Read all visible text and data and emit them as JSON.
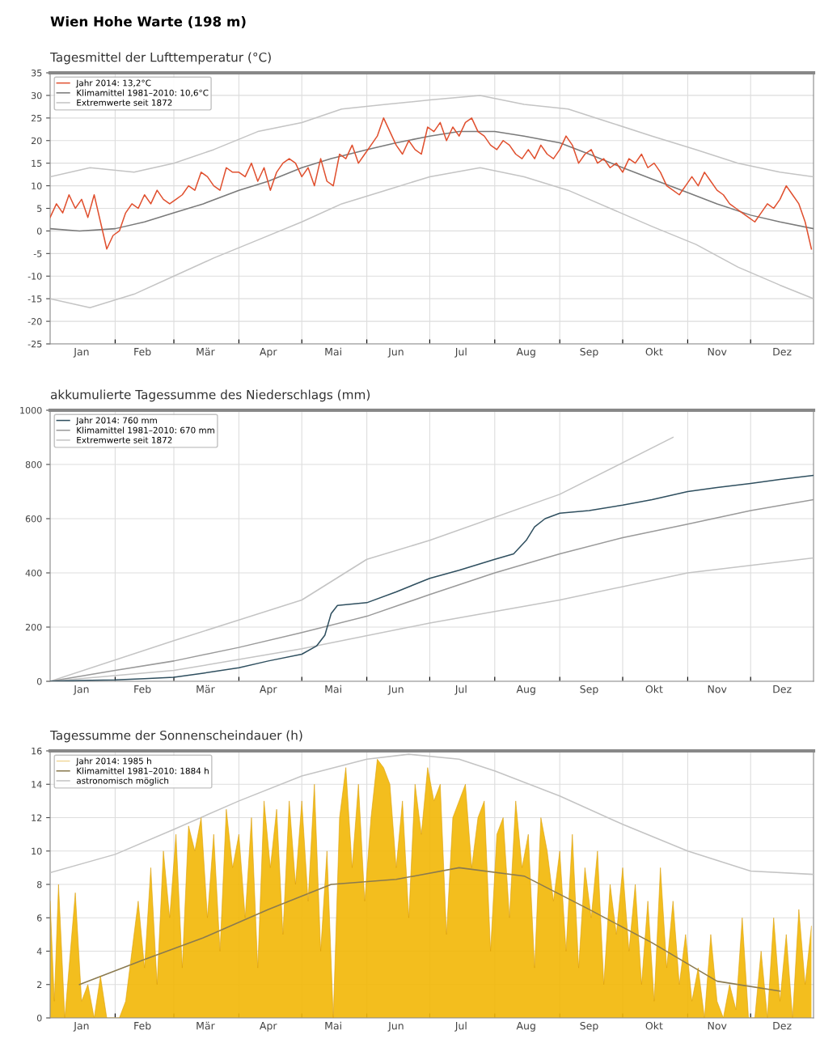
{
  "chart_data": [
    {
      "type": "line",
      "title": "Wien Hohe Warte (198 m)",
      "subtitle": "Tagesmittel der Lufttemperatur (°C)",
      "legend": "top left",
      "grid": true,
      "xlim": [
        "2014-01-01",
        "2014-12-31"
      ],
      "xticks": [
        {
          "value": "2014-02-01",
          "label": null
        },
        {
          "value": "2014-03-01",
          "label": null
        },
        {
          "value": "2014-04-01",
          "label": null
        },
        {
          "value": "2014-05-01",
          "label": null
        },
        {
          "value": "2014-06-01",
          "label": null
        },
        {
          "value": "2014-07-01",
          "label": null
        },
        {
          "value": "2014-08-01",
          "label": null
        },
        {
          "value": "2014-09-01",
          "label": null
        },
        {
          "value": "2014-10-01",
          "label": null
        },
        {
          "value": "2014-11-01",
          "label": null
        },
        {
          "value": "2014-12-01",
          "label": null
        },
        {
          "value": "2014-01-16",
          "label": "Jan"
        },
        {
          "value": "2014-02-14",
          "label": "Feb"
        },
        {
          "value": "2014-03-16",
          "label": "Mär"
        },
        {
          "value": "2014-04-15",
          "label": "Apr"
        },
        {
          "value": "2014-05-16",
          "label": "Mai"
        },
        {
          "value": "2014-06-15",
          "label": "Jun"
        },
        {
          "value": "2014-07-16",
          "label": "Jul"
        },
        {
          "value": "2014-08-16",
          "label": "Aug"
        },
        {
          "value": "2014-09-15",
          "label": "Sep"
        },
        {
          "value": "2014-10-16",
          "label": "Okt"
        },
        {
          "value": "2014-11-15",
          "label": "Nov"
        },
        {
          "value": "2014-12-16",
          "label": "Dez"
        }
      ],
      "ylim": [
        -25,
        35
      ],
      "yticks": [
        -25,
        -20,
        -15,
        -10,
        -5,
        0,
        5,
        10,
        15,
        20,
        25,
        30,
        35
      ],
      "series": [
        {
          "name": "Jahr 2014: 13,2°C",
          "color": "#e0502f",
          "x": [
            "2014-01-01",
            "2014-01-04",
            "2014-01-07",
            "2014-01-10",
            "2014-01-13",
            "2014-01-16",
            "2014-01-19",
            "2014-01-22",
            "2014-01-25",
            "2014-01-28",
            "2014-01-31",
            "2014-02-03",
            "2014-02-06",
            "2014-02-09",
            "2014-02-12",
            "2014-02-15",
            "2014-02-18",
            "2014-02-21",
            "2014-02-24",
            "2014-02-27",
            "2014-03-02",
            "2014-03-05",
            "2014-03-08",
            "2014-03-11",
            "2014-03-14",
            "2014-03-17",
            "2014-03-20",
            "2014-03-23",
            "2014-03-26",
            "2014-03-29",
            "2014-04-01",
            "2014-04-04",
            "2014-04-07",
            "2014-04-10",
            "2014-04-13",
            "2014-04-16",
            "2014-04-19",
            "2014-04-22",
            "2014-04-25",
            "2014-04-28",
            "2014-05-01",
            "2014-05-04",
            "2014-05-07",
            "2014-05-10",
            "2014-05-13",
            "2014-05-16",
            "2014-05-19",
            "2014-05-22",
            "2014-05-25",
            "2014-05-28",
            "2014-05-31",
            "2014-06-03",
            "2014-06-06",
            "2014-06-09",
            "2014-06-12",
            "2014-06-15",
            "2014-06-18",
            "2014-06-21",
            "2014-06-24",
            "2014-06-27",
            "2014-06-30",
            "2014-07-03",
            "2014-07-06",
            "2014-07-09",
            "2014-07-12",
            "2014-07-15",
            "2014-07-18",
            "2014-07-21",
            "2014-07-24",
            "2014-07-27",
            "2014-07-30",
            "2014-08-02",
            "2014-08-05",
            "2014-08-08",
            "2014-08-11",
            "2014-08-14",
            "2014-08-17",
            "2014-08-20",
            "2014-08-23",
            "2014-08-26",
            "2014-08-29",
            "2014-09-01",
            "2014-09-04",
            "2014-09-07",
            "2014-09-10",
            "2014-09-13",
            "2014-09-16",
            "2014-09-19",
            "2014-09-22",
            "2014-09-25",
            "2014-09-28",
            "2014-10-01",
            "2014-10-04",
            "2014-10-07",
            "2014-10-10",
            "2014-10-13",
            "2014-10-16",
            "2014-10-19",
            "2014-10-22",
            "2014-10-25",
            "2014-10-28",
            "2014-10-31",
            "2014-11-03",
            "2014-11-06",
            "2014-11-09",
            "2014-11-12",
            "2014-11-15",
            "2014-11-18",
            "2014-11-21",
            "2014-11-24",
            "2014-11-27",
            "2014-11-30",
            "2014-12-03",
            "2014-12-06",
            "2014-12-09",
            "2014-12-12",
            "2014-12-15",
            "2014-12-18",
            "2014-12-21",
            "2014-12-24",
            "2014-12-27",
            "2014-12-30"
          ],
          "values": [
            3,
            6,
            4,
            8,
            5,
            7,
            3,
            8,
            2,
            -4,
            -1,
            0,
            4,
            6,
            5,
            8,
            6,
            9,
            7,
            6,
            7,
            8,
            10,
            9,
            13,
            12,
            10,
            9,
            14,
            13,
            13,
            12,
            15,
            11,
            14,
            9,
            13,
            15,
            16,
            15,
            12,
            14,
            10,
            16,
            11,
            10,
            17,
            16,
            19,
            15,
            17,
            19,
            21,
            25,
            22,
            19,
            17,
            20,
            18,
            17,
            23,
            22,
            24,
            20,
            23,
            21,
            24,
            25,
            22,
            21,
            19,
            18,
            20,
            19,
            17,
            16,
            18,
            16,
            19,
            17,
            16,
            18,
            21,
            19,
            15,
            17,
            18,
            15,
            16,
            14,
            15,
            13,
            16,
            15,
            17,
            14,
            15,
            13,
            10,
            9,
            8,
            10,
            12,
            10,
            13,
            11,
            9,
            8,
            6,
            5,
            4,
            3,
            2,
            4,
            6,
            5,
            7,
            10,
            8,
            6,
            2,
            -4
          ]
        },
        {
          "name": "Klimamittel 1981–2010: 10,6°C",
          "color": "#7a7a7a",
          "x": [
            "2014-01-01",
            "2014-01-15",
            "2014-02-01",
            "2014-02-15",
            "2014-03-01",
            "2014-03-15",
            "2014-04-01",
            "2014-04-15",
            "2014-05-01",
            "2014-05-15",
            "2014-06-01",
            "2014-06-15",
            "2014-07-01",
            "2014-07-15",
            "2014-08-01",
            "2014-08-15",
            "2014-09-01",
            "2014-09-15",
            "2014-10-01",
            "2014-10-15",
            "2014-11-01",
            "2014-11-15",
            "2014-12-01",
            "2014-12-15",
            "2014-12-31"
          ],
          "values": [
            0.5,
            0,
            0.5,
            2,
            4,
            6,
            9,
            11,
            14,
            16,
            18,
            19.5,
            21,
            22,
            22,
            21,
            19.5,
            17,
            14,
            11.5,
            8.5,
            6,
            3.5,
            2,
            0.5
          ]
        },
        {
          "name": "Extremwerte seit 1872",
          "color": "#c4c4c4",
          "x": [
            "2014-01-01",
            "2014-01-20",
            "2014-02-10",
            "2014-03-01",
            "2014-03-20",
            "2014-04-10",
            "2014-05-01",
            "2014-05-20",
            "2014-06-10",
            "2014-07-01",
            "2014-07-25",
            "2014-08-15",
            "2014-09-05",
            "2014-09-25",
            "2014-10-15",
            "2014-11-05",
            "2014-11-25",
            "2014-12-15",
            "2014-12-31"
          ],
          "values": [
            12,
            14,
            13,
            15,
            18,
            22,
            24,
            27,
            28,
            29,
            30,
            28,
            27,
            24,
            21,
            18,
            15,
            13,
            12
          ]
        },
        {
          "color": "#c4c4c4",
          "x": [
            "2014-01-01",
            "2014-01-20",
            "2014-02-10",
            "2014-03-01",
            "2014-03-20",
            "2014-04-10",
            "2014-05-01",
            "2014-05-20",
            "2014-06-10",
            "2014-07-01",
            "2014-07-25",
            "2014-08-15",
            "2014-09-05",
            "2014-09-25",
            "2014-10-15",
            "2014-11-05",
            "2014-11-25",
            "2014-12-15",
            "2014-12-31"
          ],
          "values": [
            -15,
            -17,
            -14,
            -10,
            -6,
            -2,
            2,
            6,
            9,
            12,
            14,
            12,
            9,
            5,
            1,
            -3,
            -8,
            -12,
            -15
          ]
        }
      ]
    },
    {
      "type": "line",
      "title": "akkumulierte Tagessumme des Niederschlags (mm)",
      "legend": "top left",
      "grid": true,
      "xlim": [
        "2014-01-01",
        "2014-12-31"
      ],
      "xticks": [
        {
          "value": "2014-02-01",
          "label": null
        },
        {
          "value": "2014-03-01",
          "label": null
        },
        {
          "value": "2014-04-01",
          "label": null
        },
        {
          "value": "2014-05-01",
          "label": null
        },
        {
          "value": "2014-06-01",
          "label": null
        },
        {
          "value": "2014-07-01",
          "label": null
        },
        {
          "value": "2014-08-01",
          "label": null
        },
        {
          "value": "2014-09-01",
          "label": null
        },
        {
          "value": "2014-10-01",
          "label": null
        },
        {
          "value": "2014-11-01",
          "label": null
        },
        {
          "value": "2014-12-01",
          "label": null
        },
        {
          "value": "2014-01-16",
          "label": "Jan"
        },
        {
          "value": "2014-02-14",
          "label": "Feb"
        },
        {
          "value": "2014-03-16",
          "label": "Mär"
        },
        {
          "value": "2014-04-15",
          "label": "Apr"
        },
        {
          "value": "2014-05-16",
          "label": "Mai"
        },
        {
          "value": "2014-06-15",
          "label": "Jun"
        },
        {
          "value": "2014-07-16",
          "label": "Jul"
        },
        {
          "value": "2014-08-16",
          "label": "Aug"
        },
        {
          "value": "2014-09-15",
          "label": "Sep"
        },
        {
          "value": "2014-10-16",
          "label": "Okt"
        },
        {
          "value": "2014-11-15",
          "label": "Nov"
        },
        {
          "value": "2014-12-16",
          "label": "Dez"
        }
      ],
      "ylim": [
        0,
        1000
      ],
      "yticks": [
        0,
        200,
        400,
        600,
        800,
        1000
      ],
      "series": [
        {
          "name": "Jahr 2014: 760 mm",
          "color": "#2f4f5f",
          "x": [
            "2014-01-01",
            "2014-01-15",
            "2014-02-01",
            "2014-02-15",
            "2014-03-01",
            "2014-03-15",
            "2014-04-01",
            "2014-04-15",
            "2014-05-01",
            "2014-05-08",
            "2014-05-12",
            "2014-05-15",
            "2014-05-18",
            "2014-06-01",
            "2014-06-15",
            "2014-07-01",
            "2014-07-15",
            "2014-08-01",
            "2014-08-10",
            "2014-08-16",
            "2014-08-20",
            "2014-08-25",
            "2014-09-01",
            "2014-09-15",
            "2014-10-01",
            "2014-10-15",
            "2014-11-01",
            "2014-11-15",
            "2014-12-01",
            "2014-12-15",
            "2014-12-31"
          ],
          "values": [
            0,
            3,
            5,
            10,
            15,
            30,
            50,
            75,
            100,
            130,
            170,
            250,
            280,
            290,
            330,
            380,
            410,
            450,
            470,
            520,
            570,
            600,
            620,
            630,
            650,
            670,
            700,
            715,
            730,
            745,
            760
          ]
        },
        {
          "name": "Klimamittel 1981–2010: 670 mm",
          "color": "#9a9a9a",
          "x": [
            "2014-01-01",
            "2014-02-01",
            "2014-03-01",
            "2014-04-01",
            "2014-05-01",
            "2014-06-01",
            "2014-07-01",
            "2014-08-01",
            "2014-09-01",
            "2014-10-01",
            "2014-11-01",
            "2014-12-01",
            "2014-12-31"
          ],
          "values": [
            0,
            40,
            75,
            125,
            180,
            240,
            320,
            400,
            470,
            530,
            580,
            630,
            670
          ]
        },
        {
          "name": "Extremwerte seit 1872",
          "color": "#c4c4c4",
          "x": [
            "2014-01-01",
            "2014-03-01",
            "2014-05-01",
            "2014-06-01",
            "2014-07-01",
            "2014-09-01",
            "2014-10-25"
          ],
          "values": [
            0,
            150,
            300,
            450,
            520,
            690,
            900
          ]
        },
        {
          "color": "#c4c4c4",
          "x": [
            "2014-01-01",
            "2014-03-01",
            "2014-05-01",
            "2014-07-01",
            "2014-09-01",
            "2014-11-01",
            "2014-12-31"
          ],
          "values": [
            0,
            40,
            120,
            215,
            300,
            400,
            455
          ]
        }
      ]
    },
    {
      "type": "area",
      "title": "Tagessumme der Sonnenscheindauer (h)",
      "legend": "top left",
      "grid": true,
      "xlim": [
        "2014-01-01",
        "2014-12-31"
      ],
      "xticks": [
        {
          "value": "2014-02-01",
          "label": null
        },
        {
          "value": "2014-03-01",
          "label": null
        },
        {
          "value": "2014-04-01",
          "label": null
        },
        {
          "value": "2014-05-01",
          "label": null
        },
        {
          "value": "2014-06-01",
          "label": null
        },
        {
          "value": "2014-07-01",
          "label": null
        },
        {
          "value": "2014-08-01",
          "label": null
        },
        {
          "value": "2014-09-01",
          "label": null
        },
        {
          "value": "2014-10-01",
          "label": null
        },
        {
          "value": "2014-11-01",
          "label": null
        },
        {
          "value": "2014-12-01",
          "label": null
        },
        {
          "value": "2014-01-16",
          "label": "Jan"
        },
        {
          "value": "2014-02-14",
          "label": "Feb"
        },
        {
          "value": "2014-03-16",
          "label": "Mär"
        },
        {
          "value": "2014-04-15",
          "label": "Apr"
        },
        {
          "value": "2014-05-16",
          "label": "Mai"
        },
        {
          "value": "2014-06-15",
          "label": "Jun"
        },
        {
          "value": "2014-07-16",
          "label": "Jul"
        },
        {
          "value": "2014-08-16",
          "label": "Aug"
        },
        {
          "value": "2014-09-15",
          "label": "Sep"
        },
        {
          "value": "2014-10-16",
          "label": "Okt"
        },
        {
          "value": "2014-11-15",
          "label": "Nov"
        },
        {
          "value": "2014-12-16",
          "label": "Dez"
        }
      ],
      "ylim": [
        0,
        16
      ],
      "yticks": [
        0,
        2,
        4,
        6,
        8,
        10,
        12,
        14,
        16
      ],
      "series": [
        {
          "name": "Jahr 2014: 1985 h",
          "color": "#f2b705",
          "type": "area",
          "x": [
            "2014-01-01",
            "2014-01-03",
            "2014-01-05",
            "2014-01-08",
            "2014-01-10",
            "2014-01-13",
            "2014-01-16",
            "2014-01-19",
            "2014-01-22",
            "2014-01-25",
            "2014-01-28",
            "2014-01-31",
            "2014-02-03",
            "2014-02-06",
            "2014-02-09",
            "2014-02-12",
            "2014-02-15",
            "2014-02-18",
            "2014-02-21",
            "2014-02-24",
            "2014-02-27",
            "2014-03-02",
            "2014-03-05",
            "2014-03-08",
            "2014-03-11",
            "2014-03-14",
            "2014-03-17",
            "2014-03-20",
            "2014-03-23",
            "2014-03-26",
            "2014-03-29",
            "2014-04-01",
            "2014-04-04",
            "2014-04-07",
            "2014-04-10",
            "2014-04-13",
            "2014-04-16",
            "2014-04-19",
            "2014-04-22",
            "2014-04-25",
            "2014-04-28",
            "2014-05-01",
            "2014-05-04",
            "2014-05-07",
            "2014-05-10",
            "2014-05-13",
            "2014-05-16",
            "2014-05-19",
            "2014-05-22",
            "2014-05-25",
            "2014-05-28",
            "2014-05-31",
            "2014-06-03",
            "2014-06-06",
            "2014-06-09",
            "2014-06-12",
            "2014-06-15",
            "2014-06-18",
            "2014-06-21",
            "2014-06-24",
            "2014-06-27",
            "2014-06-30",
            "2014-07-03",
            "2014-07-06",
            "2014-07-09",
            "2014-07-12",
            "2014-07-15",
            "2014-07-18",
            "2014-07-21",
            "2014-07-24",
            "2014-07-27",
            "2014-07-30",
            "2014-08-02",
            "2014-08-05",
            "2014-08-08",
            "2014-08-11",
            "2014-08-14",
            "2014-08-17",
            "2014-08-20",
            "2014-08-23",
            "2014-08-26",
            "2014-08-29",
            "2014-09-01",
            "2014-09-04",
            "2014-09-07",
            "2014-09-10",
            "2014-09-13",
            "2014-09-16",
            "2014-09-19",
            "2014-09-22",
            "2014-09-25",
            "2014-09-28",
            "2014-10-01",
            "2014-10-04",
            "2014-10-07",
            "2014-10-10",
            "2014-10-13",
            "2014-10-16",
            "2014-10-19",
            "2014-10-22",
            "2014-10-25",
            "2014-10-28",
            "2014-10-31",
            "2014-11-03",
            "2014-11-06",
            "2014-11-09",
            "2014-11-12",
            "2014-11-15",
            "2014-11-18",
            "2014-11-21",
            "2014-11-24",
            "2014-11-27",
            "2014-11-30",
            "2014-12-03",
            "2014-12-06",
            "2014-12-09",
            "2014-12-12",
            "2014-12-15",
            "2014-12-18",
            "2014-12-21",
            "2014-12-24",
            "2014-12-27",
            "2014-12-30"
          ],
          "values": [
            7,
            1,
            8,
            0,
            3,
            7.5,
            1,
            2,
            0,
            2.5,
            0,
            0,
            0,
            1,
            4,
            7,
            3,
            9,
            2,
            10,
            6,
            11,
            3,
            11.5,
            10,
            12,
            6,
            11,
            4,
            12.5,
            9,
            11,
            6,
            12,
            3,
            13,
            9,
            12.5,
            5,
            13,
            8,
            13,
            7,
            14,
            4,
            10,
            0,
            12,
            15,
            9,
            14,
            7,
            12,
            15.5,
            15,
            14,
            9,
            13,
            6,
            14,
            11,
            15,
            13,
            14,
            5,
            12,
            13,
            14,
            9,
            12,
            13,
            4,
            11,
            12,
            6,
            13,
            9,
            11,
            3,
            12,
            10,
            7,
            10,
            4,
            11,
            3,
            9,
            6,
            10,
            2,
            8,
            5,
            9,
            4,
            8,
            2,
            7,
            1,
            9,
            3,
            7,
            2,
            5,
            1,
            3,
            0,
            5,
            1,
            0,
            2,
            0.5,
            6,
            0,
            0,
            4,
            0,
            6,
            1,
            5,
            0,
            6.5,
            2,
            5.5
          ]
        },
        {
          "name": "Klimamittel 1981–2010: 1884 h",
          "color": "#8a7a50",
          "type": "line",
          "x": [
            "2014-01-15",
            "2014-02-15",
            "2014-03-15",
            "2014-04-15",
            "2014-05-15",
            "2014-06-15",
            "2014-07-15",
            "2014-08-15",
            "2014-09-15",
            "2014-10-15",
            "2014-11-15",
            "2014-12-15"
          ],
          "values": [
            2,
            3.5,
            4.8,
            6.5,
            8,
            8.3,
            9,
            8.5,
            6.5,
            4.5,
            2.2,
            1.6
          ]
        },
        {
          "name": "astronomisch möglich",
          "color": "#c4c4c4",
          "type": "line",
          "x": [
            "2014-01-01",
            "2014-02-01",
            "2014-03-01",
            "2014-04-01",
            "2014-05-01",
            "2014-06-01",
            "2014-06-21",
            "2014-07-15",
            "2014-08-01",
            "2014-09-01",
            "2014-10-01",
            "2014-11-01",
            "2014-12-01",
            "2014-12-31"
          ],
          "values": [
            8.7,
            9.8,
            11.3,
            13,
            14.5,
            15.5,
            15.8,
            15.5,
            14.8,
            13.3,
            11.6,
            10,
            8.8,
            8.6
          ]
        }
      ]
    }
  ]
}
